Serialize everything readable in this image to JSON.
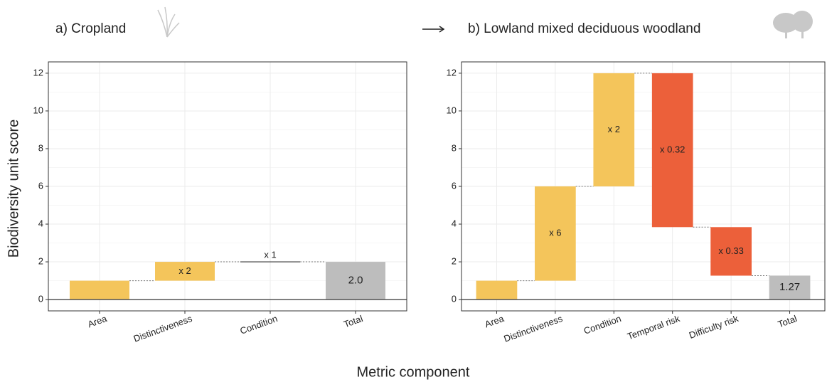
{
  "chart_data": [
    {
      "type": "waterfall",
      "title": "a) Cropland",
      "categories": [
        "Area",
        "Distinctiveness",
        "Condition",
        "Total"
      ],
      "values": [
        1,
        2,
        1,
        2
      ],
      "value_labels": [
        null,
        "x 2",
        "x 1",
        "2.0"
      ],
      "colors": [
        "#f4c55b",
        "#f4c55b",
        "#f4c55b",
        "#bdbdbd"
      ],
      "ylim": [
        -0.6,
        12.6
      ],
      "yticks": [
        0,
        2,
        4,
        6,
        8,
        10,
        12
      ],
      "grid": true
    },
    {
      "type": "waterfall",
      "title": "b) Lowland mixed deciduous woodland",
      "categories": [
        "Area",
        "Distinctiveness",
        "Condition",
        "Temporal risk",
        "Difficulty risk",
        "Total"
      ],
      "values": [
        1,
        6,
        2,
        0.32,
        0.33,
        1.27
      ],
      "value_labels": [
        null,
        "x 6",
        "x 2",
        "x 0.32",
        "x 0.33",
        "1.27"
      ],
      "colors": [
        "#f4c55b",
        "#f4c55b",
        "#f4c55b",
        "#ec603a",
        "#ec603a",
        "#bdbdbd"
      ],
      "ylim": [
        -0.6,
        12.6
      ],
      "yticks": [
        0,
        2,
        4,
        6,
        8,
        10,
        12
      ],
      "grid": true
    }
  ],
  "y_label": "Biodiversity unit score",
  "x_label": "Metric component"
}
